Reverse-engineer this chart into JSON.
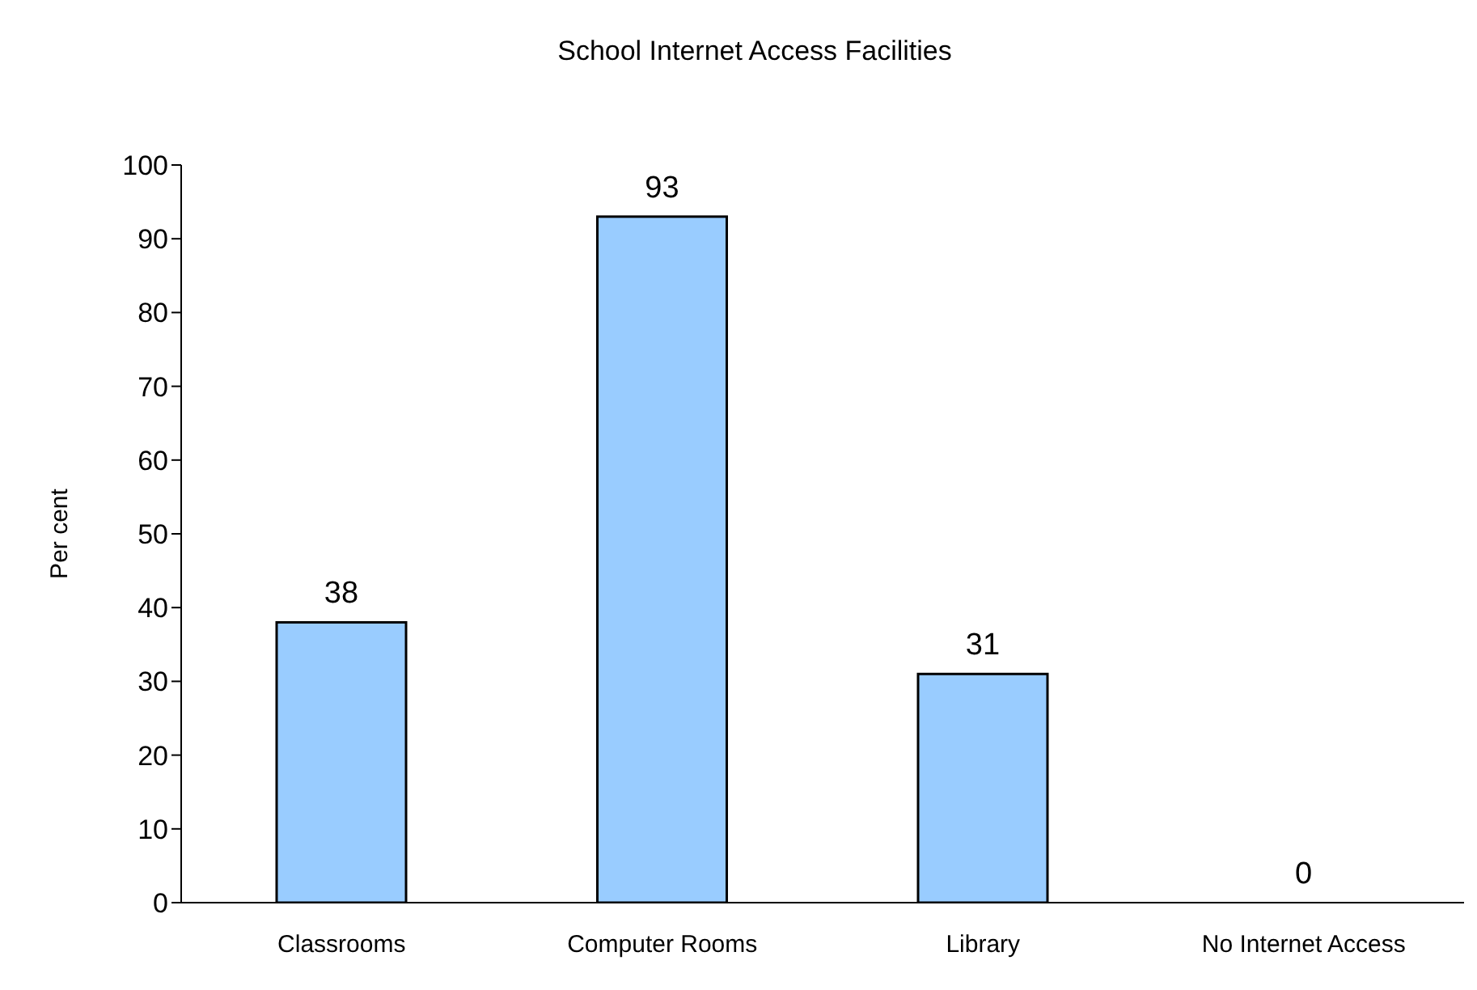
{
  "chart_data": {
    "type": "bar",
    "title": "School Internet Access Facilities",
    "ylabel": "Per cent",
    "categories": [
      "Classrooms",
      "Computer Rooms",
      "Library",
      "No Internet Access"
    ],
    "values": [
      38,
      93,
      31,
      0
    ],
    "color": "#99ccff",
    "ylim": [
      0,
      100
    ],
    "yticks": [
      0,
      10,
      20,
      30,
      40,
      50,
      60,
      70,
      80,
      90,
      100
    ],
    "grid": false,
    "data_labels": true,
    "legend": false
  }
}
